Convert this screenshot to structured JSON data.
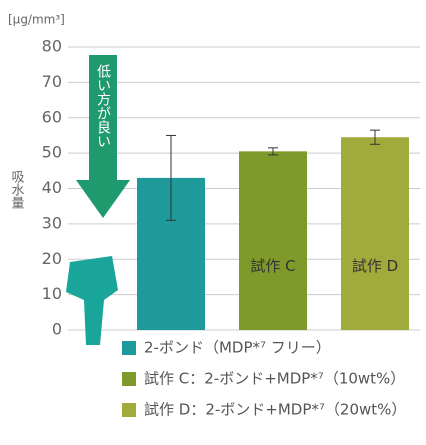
{
  "chart_data": {
    "type": "bar",
    "unit_label": "[μg/mm³]",
    "y_label": "吸水量",
    "annotation": "低い方が良い",
    "categories": [
      null,
      "試作 C",
      "試作 D"
    ],
    "values": [
      43,
      50.5,
      54.5
    ],
    "errors": [
      12,
      1,
      2
    ],
    "colors": [
      "#1f9a9a",
      "#7d9a2a",
      "#a0ab3c"
    ],
    "legend": [
      "2-ボンド（MDP*⁷ フリー）",
      "試作 C：2-ボンド+MDP*⁷（10wt%）",
      "試作 D：2-ボンド+MDP*⁷（20wt%）"
    ],
    "ylim": [
      0,
      80
    ],
    "yticks": [
      0,
      10,
      20,
      30,
      40,
      50,
      60,
      70,
      80
    ],
    "grid": true
  }
}
